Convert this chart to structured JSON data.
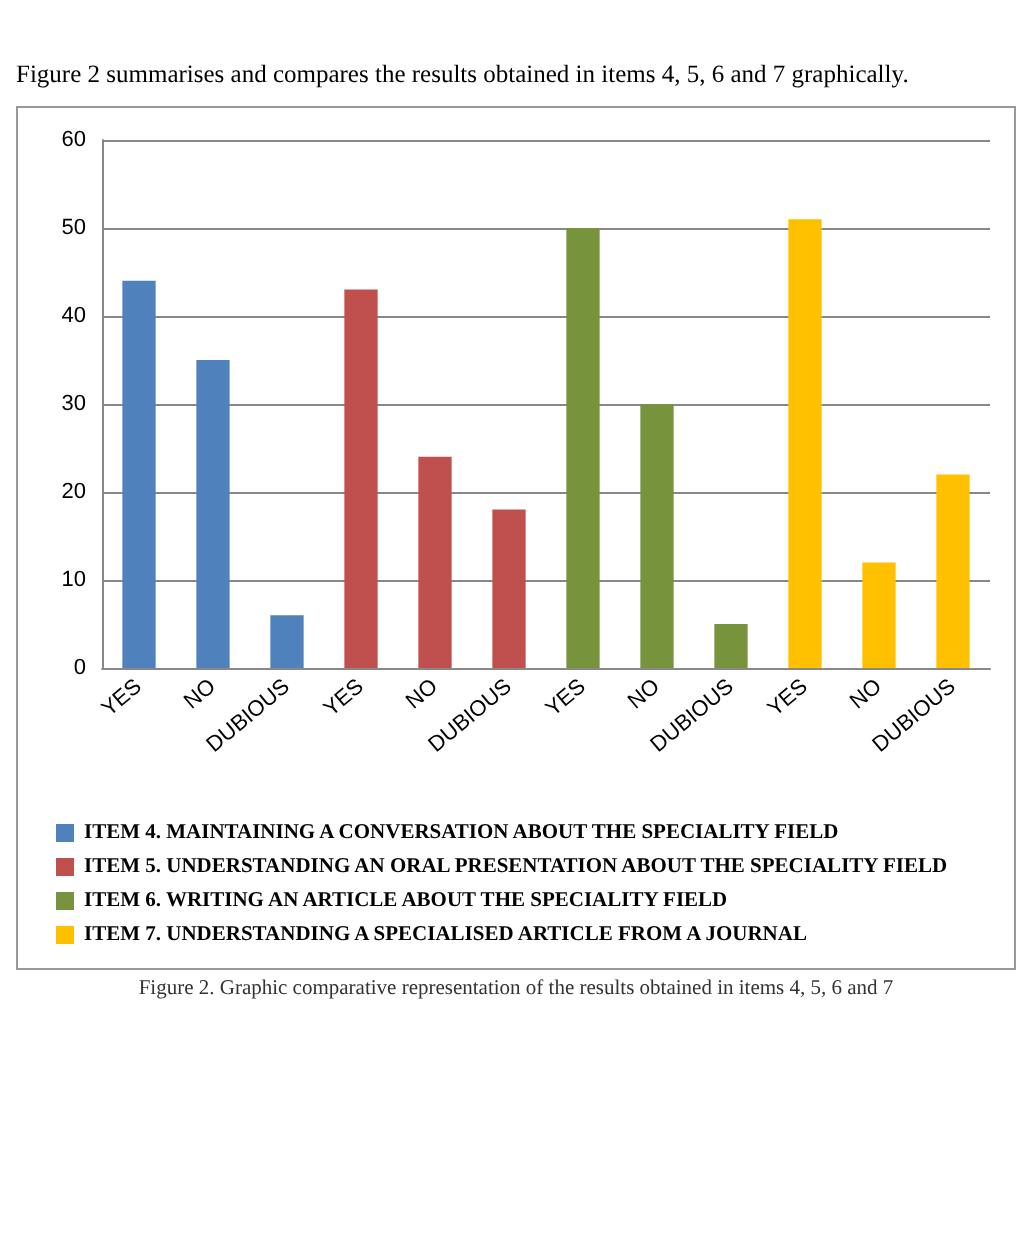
{
  "chart_data": {
    "type": "bar",
    "categories": [
      "YES",
      "NO",
      "DUBIOUS",
      "YES",
      "NO",
      "DUBIOUS",
      "YES",
      "NO",
      "DUBIOUS",
      "YES",
      "NO",
      "DUBIOUS"
    ],
    "series": [
      {
        "name": "ITEM 4. MAINTAINING A CONVERSATION ABOUT THE SPECIALITY FIELD",
        "color": "#4f81bd",
        "values": [
          44,
          35,
          6,
          null,
          null,
          null,
          null,
          null,
          null,
          null,
          null,
          null
        ]
      },
      {
        "name": "ITEM 5. UNDERSTANDING AN ORAL PRESENTATION ABOUT THE SPECIALITY FIELD",
        "color": "#c0504d",
        "values": [
          null,
          null,
          null,
          43,
          24,
          18,
          null,
          null,
          null,
          null,
          null,
          null
        ]
      },
      {
        "name": "ITEM 6. WRITING AN ARTICLE ABOUT THE SPECIALITY FIELD",
        "color": "#77933c",
        "values": [
          null,
          null,
          null,
          null,
          null,
          null,
          50,
          30,
          5,
          null,
          null,
          null
        ]
      },
      {
        "name": "ITEM 7. UNDERSTANDING A SPECIALISED ARTICLE FROM A JOURNAL",
        "color": "#ffc000",
        "values": [
          null,
          null,
          null,
          null,
          null,
          null,
          null,
          null,
          null,
          51,
          12,
          22
        ]
      }
    ],
    "ylim": [
      0,
      60
    ],
    "yticks": [
      0,
      10,
      20,
      30,
      40,
      50,
      60
    ],
    "grid": "y",
    "legend": "bottom left",
    "annotations": [
      "Figure 2 summarises and compares the results obtained in items 4, 5, 6 and 7 graphically.",
      "Figure 2. Graphic comparative representation of the results obtained in items 4, 5, 6 and 7"
    ]
  }
}
